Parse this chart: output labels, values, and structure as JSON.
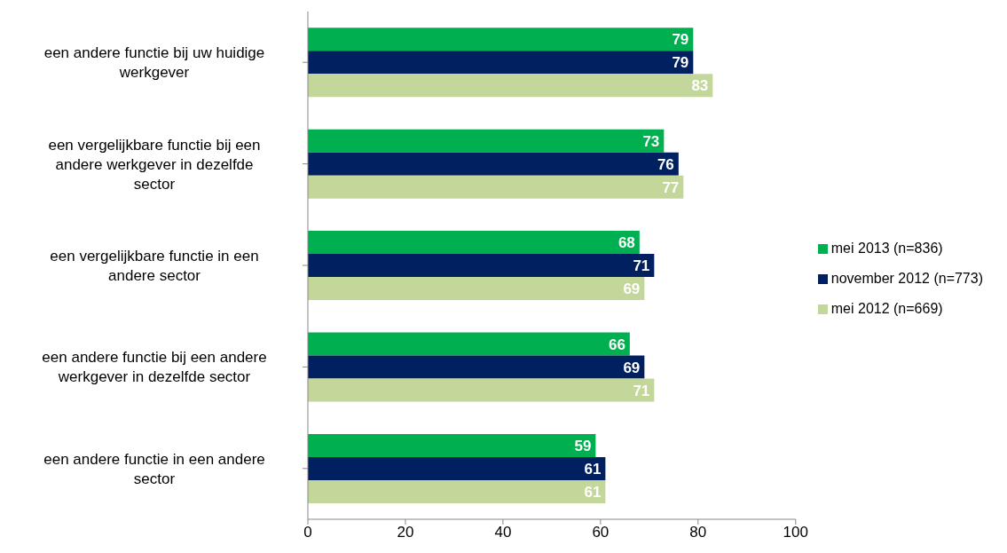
{
  "chart_data": {
    "type": "bar",
    "orientation": "horizontal",
    "categories": [
      "een andere functie bij uw huidige werkgever",
      "een vergelijkbare functie bij een andere werkgever in dezelfde sector",
      "een vergelijkbare functie in een andere sector",
      "een andere functie bij een andere werkgever in dezelfde sector",
      "een andere functie in een andere sector"
    ],
    "series": [
      {
        "name": "mei 2013 (n=836)",
        "color": "#00b050",
        "values": [
          79,
          73,
          68,
          66,
          59
        ]
      },
      {
        "name": "november 2012 (n=773)",
        "color": "#002060",
        "values": [
          79,
          76,
          71,
          69,
          61
        ]
      },
      {
        "name": "mei 2012 (n=669)",
        "color": "#c4d79b",
        "values": [
          83,
          77,
          69,
          71,
          61
        ]
      }
    ],
    "xlim": [
      0,
      100
    ],
    "xticks": [
      0,
      20,
      40,
      60,
      80,
      100
    ],
    "data_labels": true,
    "legend": "right",
    "grid": false
  }
}
